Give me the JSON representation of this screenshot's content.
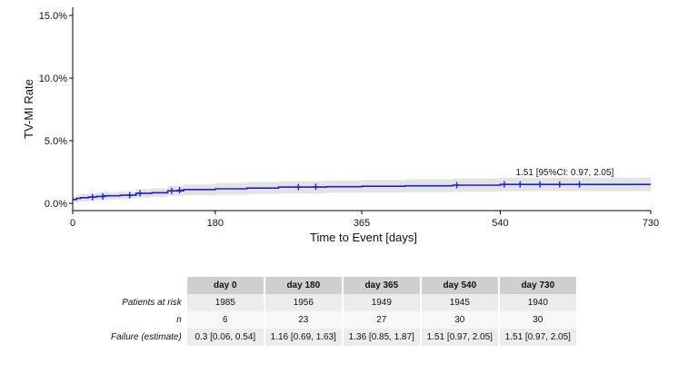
{
  "chart_data": {
    "type": "line",
    "xlabel": "Time to Event [days]",
    "ylabel": "TV-MI Rate",
    "xlim": [
      0,
      730
    ],
    "ylim": [
      0,
      15
    ],
    "x_ticks": [
      0,
      180,
      365,
      540,
      730
    ],
    "x_tick_labels": [
      "0",
      "180",
      "365",
      "540",
      "730"
    ],
    "y_ticks": [
      0,
      5,
      10,
      15
    ],
    "y_tick_labels": [
      "0.0%",
      "5.0%",
      "10.0%",
      "15.0%"
    ],
    "grid": false,
    "colors": {
      "line": "#1f1fd6",
      "band": "#e3e3e3"
    },
    "series": [
      {
        "values_x": [
          0,
          5,
          10,
          20,
          30,
          40,
          60,
          80,
          100,
          120,
          140,
          180,
          220,
          260,
          320,
          365,
          420,
          480,
          540,
          600,
          700,
          730
        ],
        "values_y": [
          0.3,
          0.4,
          0.45,
          0.5,
          0.55,
          0.6,
          0.65,
          0.8,
          0.85,
          1.0,
          1.1,
          1.16,
          1.22,
          1.3,
          1.33,
          1.36,
          1.4,
          1.45,
          1.51,
          1.51,
          1.51,
          1.51
        ],
        "ci_lower": [
          0.06,
          0.1,
          0.15,
          0.2,
          0.25,
          0.3,
          0.35,
          0.45,
          0.5,
          0.6,
          0.65,
          0.69,
          0.74,
          0.8,
          0.83,
          0.85,
          0.9,
          0.94,
          0.97,
          0.97,
          0.97,
          0.97
        ],
        "ci_upper": [
          0.54,
          0.7,
          0.75,
          0.8,
          0.85,
          0.9,
          0.95,
          1.15,
          1.2,
          1.4,
          1.5,
          1.63,
          1.7,
          1.78,
          1.82,
          1.87,
          1.92,
          1.98,
          2.05,
          2.05,
          2.05,
          2.05
        ],
        "censor_x": [
          25,
          38,
          72,
          85,
          125,
          135,
          285,
          307,
          485,
          545,
          565,
          590,
          615,
          640
        ],
        "censor_y": [
          0.5,
          0.55,
          0.65,
          0.8,
          1.0,
          1.05,
          1.3,
          1.32,
          1.45,
          1.51,
          1.51,
          1.51,
          1.51,
          1.51
        ]
      }
    ],
    "annotations": [
      {
        "text": "1.51 [95%CI: 0.97, 2.05]",
        "x": 540,
        "y": 1.51
      }
    ]
  },
  "table": {
    "columns": [
      "day 0",
      "day 180",
      "day 365",
      "day 540",
      "day 730"
    ],
    "rows": [
      {
        "label": "Patients at risk",
        "values": [
          "1985",
          "1956",
          "1949",
          "1945",
          "1940"
        ]
      },
      {
        "label": "n",
        "values": [
          "6",
          "23",
          "27",
          "30",
          "30"
        ]
      },
      {
        "label": "Failure (estimate)",
        "values": [
          "0.3 [0.06, 0.54]",
          "1.16 [0.69, 1.63]",
          "1.36 [0.85, 1.87]",
          "1.51 [0.97, 2.05]",
          "1.51 [0.97, 2.05]"
        ]
      }
    ]
  }
}
